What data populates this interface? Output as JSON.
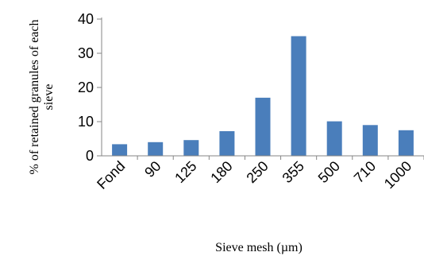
{
  "chart_data": {
    "type": "bar",
    "categories": [
      "Fond",
      "90",
      "125",
      "180",
      "250",
      "355",
      "500",
      "710",
      "1000"
    ],
    "values": [
      3.4,
      4.0,
      4.6,
      7.2,
      17.0,
      35.0,
      10.1,
      9.0,
      7.5
    ],
    "title": "",
    "xlabel": "Sieve mesh (µm)",
    "ylabel": "% of retained granules of each sieve",
    "ylim": [
      0,
      40
    ],
    "yticks": [
      0,
      10,
      20,
      30,
      40
    ],
    "grid": false,
    "legend": "none",
    "bar_color": "#4a7ebb",
    "axis_color": "#868686"
  }
}
